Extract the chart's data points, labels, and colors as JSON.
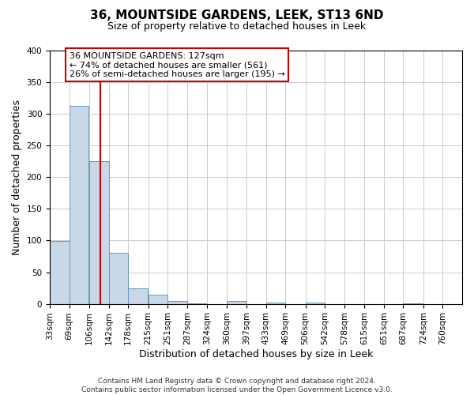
{
  "title": "36, MOUNTSIDE GARDENS, LEEK, ST13 6ND",
  "subtitle": "Size of property relative to detached houses in Leek",
  "xlabel": "Distribution of detached houses by size in Leek",
  "ylabel": "Number of detached properties",
  "bin_labels": [
    "33sqm",
    "69sqm",
    "106sqm",
    "142sqm",
    "178sqm",
    "215sqm",
    "251sqm",
    "287sqm",
    "324sqm",
    "360sqm",
    "397sqm",
    "433sqm",
    "469sqm",
    "506sqm",
    "542sqm",
    "578sqm",
    "615sqm",
    "651sqm",
    "687sqm",
    "724sqm",
    "760sqm"
  ],
  "bin_edges": [
    33,
    69,
    106,
    142,
    178,
    215,
    251,
    287,
    324,
    360,
    397,
    433,
    469,
    506,
    542,
    578,
    615,
    651,
    687,
    724,
    760
  ],
  "bar_heights": [
    99,
    313,
    225,
    81,
    25,
    14,
    5,
    1,
    0,
    5,
    0,
    2,
    0,
    2,
    0,
    0,
    0,
    0,
    1,
    0,
    0
  ],
  "bar_color": "#c8d8e8",
  "bar_edge_color": "#6699bb",
  "property_line_x": 127,
  "annotation_text_line1": "36 MOUNTSIDE GARDENS: 127sqm",
  "annotation_text_line2": "← 74% of detached houses are smaller (561)",
  "annotation_text_line3": "26% of semi-detached houses are larger (195) →",
  "annotation_box_color": "#ffffff",
  "annotation_border_color": "#cc0000",
  "vline_color": "#cc0000",
  "ylim": [
    0,
    400
  ],
  "yticks": [
    0,
    50,
    100,
    150,
    200,
    250,
    300,
    350,
    400
  ],
  "footer_line1": "Contains HM Land Registry data © Crown copyright and database right 2024.",
  "footer_line2": "Contains public sector information licensed under the Open Government Licence v3.0.",
  "background_color": "#ffffff",
  "grid_color": "#cccccc",
  "title_fontsize": 11,
  "subtitle_fontsize": 9,
  "axis_label_fontsize": 9,
  "tick_label_fontsize": 7.5,
  "annotation_fontsize": 8,
  "footer_fontsize": 6.5
}
